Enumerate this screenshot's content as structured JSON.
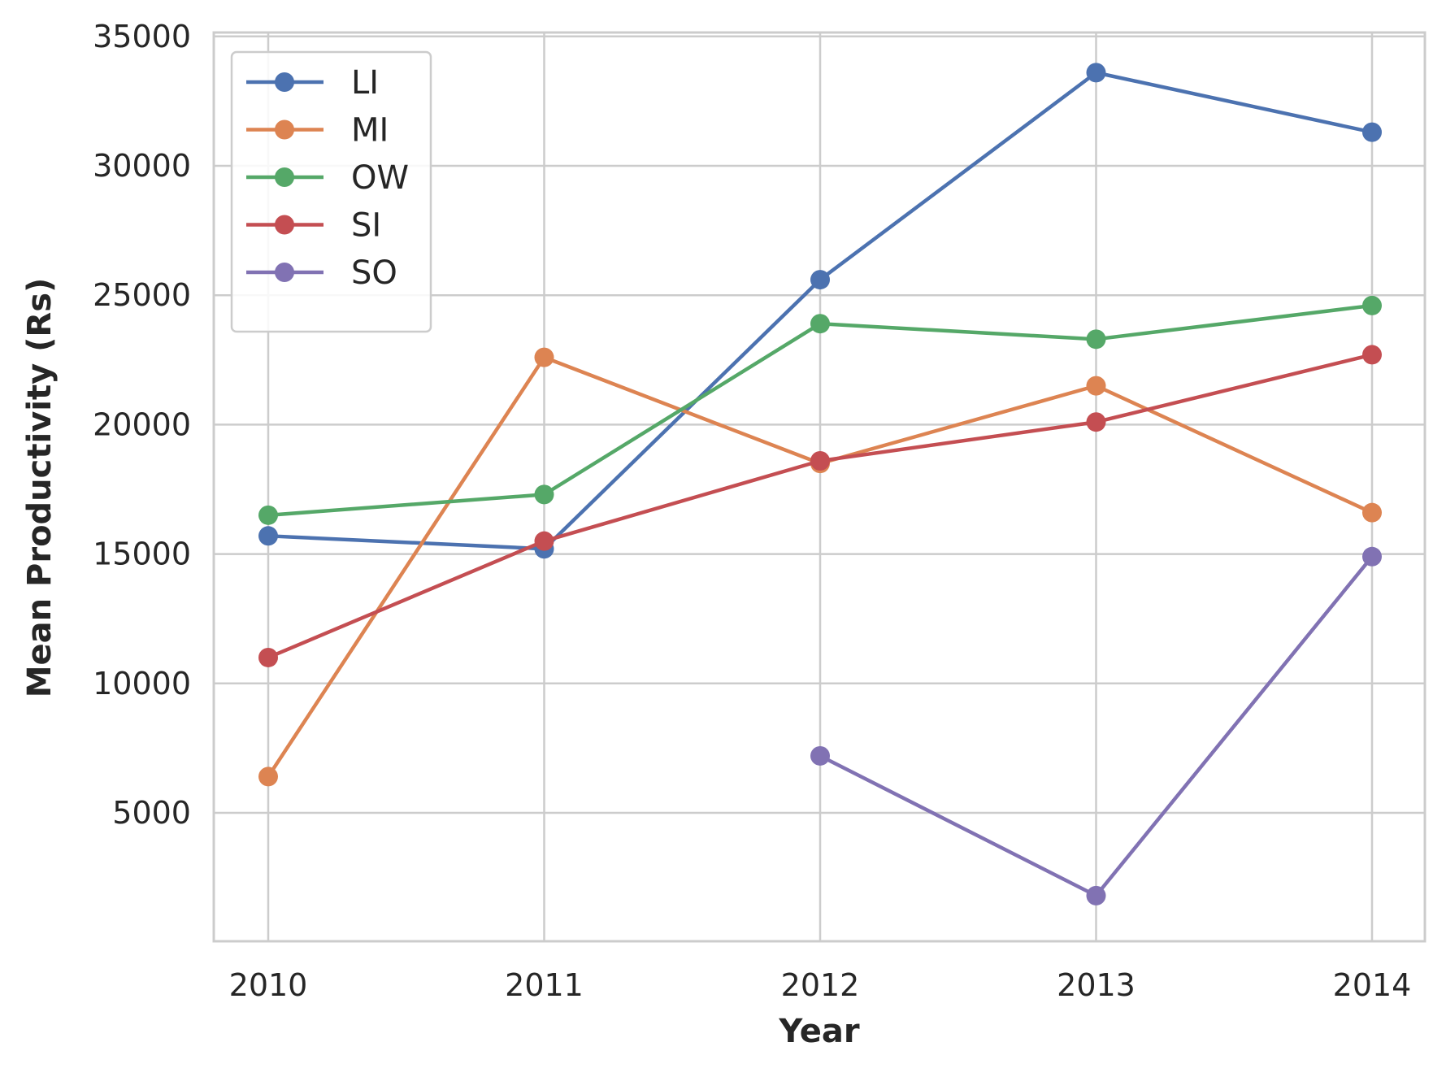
{
  "chart_data": {
    "type": "line",
    "title": "",
    "xlabel": "Year",
    "ylabel": "Mean Productivity (Rs)",
    "categories": [
      "2010",
      "2011",
      "2012",
      "2013",
      "2014"
    ],
    "yticks": [
      "5000",
      "10000",
      "15000",
      "20000",
      "25000",
      "30000",
      "35000"
    ],
    "ylim": [
      0,
      35000
    ],
    "grid": true,
    "legend_position": "top-left",
    "series": [
      {
        "name": "LI",
        "color": "#4c72b0",
        "values": [
          15700,
          15200,
          25600,
          33600,
          31300
        ]
      },
      {
        "name": "MI",
        "color": "#dd8452",
        "values": [
          6400,
          22600,
          18500,
          21500,
          16600
        ]
      },
      {
        "name": "OW",
        "color": "#55a868",
        "values": [
          16500,
          17300,
          23900,
          23300,
          24600
        ]
      },
      {
        "name": "SI",
        "color": "#c44e52",
        "values": [
          11000,
          15500,
          18600,
          20100,
          22700
        ]
      },
      {
        "name": "SO",
        "color": "#8172b3",
        "values": [
          null,
          null,
          7200,
          1800,
          14900
        ]
      }
    ]
  }
}
